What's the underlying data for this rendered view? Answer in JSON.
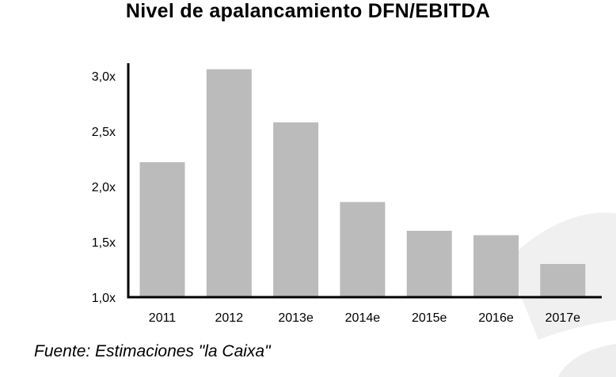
{
  "chart_data": {
    "type": "bar",
    "title": "Nivel de apalancamiento DFN/EBITDA",
    "categories": [
      "2011",
      "2012",
      "2013e",
      "2014e",
      "2015e",
      "2016e",
      "2017e"
    ],
    "values": [
      2.22,
      3.06,
      2.58,
      1.86,
      1.6,
      1.56,
      1.3
    ],
    "ylim": [
      1.0,
      3.1
    ],
    "yticks": [
      1.0,
      1.5,
      2.0,
      2.5,
      3.0
    ],
    "ytick_labels": [
      "1,0x",
      "1,5x",
      "2,0x",
      "2,5x",
      "3,0x"
    ],
    "xlabel": "",
    "ylabel": "",
    "grid": false,
    "bar_color": "#bbbbbb"
  },
  "footer": {
    "source": "Fuente: Estimaciones \"la Caixa\""
  }
}
